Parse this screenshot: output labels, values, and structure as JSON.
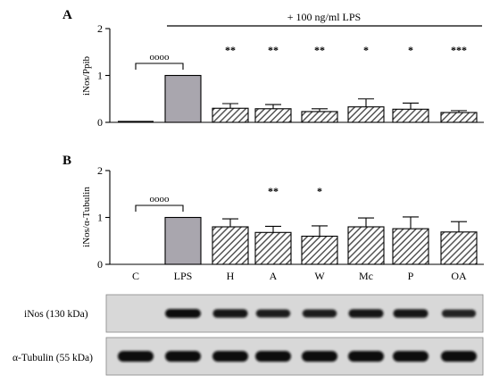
{
  "panel_labels": [
    "A",
    "B"
  ],
  "treatment_label": "+ 100 ng/ml LPS",
  "categories": [
    "C",
    "LPS",
    "H",
    "A",
    "W",
    "Mc",
    "P",
    "OA"
  ],
  "colors": {
    "control": "#000000",
    "lps": "#a9a6ae",
    "hatch": "#555555",
    "axis": "#000000"
  },
  "chart_data": [
    {
      "type": "bar",
      "panel": "A",
      "ylabel": "iNos/Ppib",
      "ylim": [
        0,
        2
      ],
      "yticks": [
        "0",
        "1",
        "2"
      ],
      "categories": [
        "C",
        "LPS",
        "H",
        "A",
        "W",
        "Mc",
        "P",
        "OA"
      ],
      "values": [
        0.02,
        1.0,
        0.3,
        0.29,
        0.23,
        0.33,
        0.28,
        0.21
      ],
      "errors": [
        0.0,
        0.0,
        0.1,
        0.09,
        0.06,
        0.17,
        0.13,
        0.04
      ],
      "significance": [
        "",
        "",
        "**",
        "**",
        "**",
        "*",
        "*",
        "***"
      ],
      "bracket_label": "oooo"
    },
    {
      "type": "bar",
      "panel": "B",
      "ylabel": "iNos/α-Tubulin",
      "ylim": [
        0,
        2
      ],
      "yticks": [
        "0",
        "1",
        "2"
      ],
      "categories": [
        "C",
        "LPS",
        "H",
        "A",
        "W",
        "Mc",
        "P",
        "OA"
      ],
      "values": [
        0.0,
        1.0,
        0.8,
        0.68,
        0.6,
        0.8,
        0.76,
        0.69
      ],
      "errors": [
        0.0,
        0.0,
        0.17,
        0.13,
        0.22,
        0.19,
        0.25,
        0.22
      ],
      "significance": [
        "",
        "",
        "",
        "**",
        "*",
        "",
        "",
        ""
      ],
      "bracket_label": "oooo"
    }
  ],
  "blots": [
    {
      "label": "iNos (130 kDa)",
      "intensities": [
        0,
        1.0,
        0.85,
        0.75,
        0.75,
        0.85,
        0.85,
        0.7
      ]
    },
    {
      "label": "α-Tubulin (55 kDa)",
      "intensities": [
        1.0,
        1.0,
        1.0,
        1.0,
        1.0,
        1.0,
        1.0,
        1.0
      ]
    }
  ]
}
